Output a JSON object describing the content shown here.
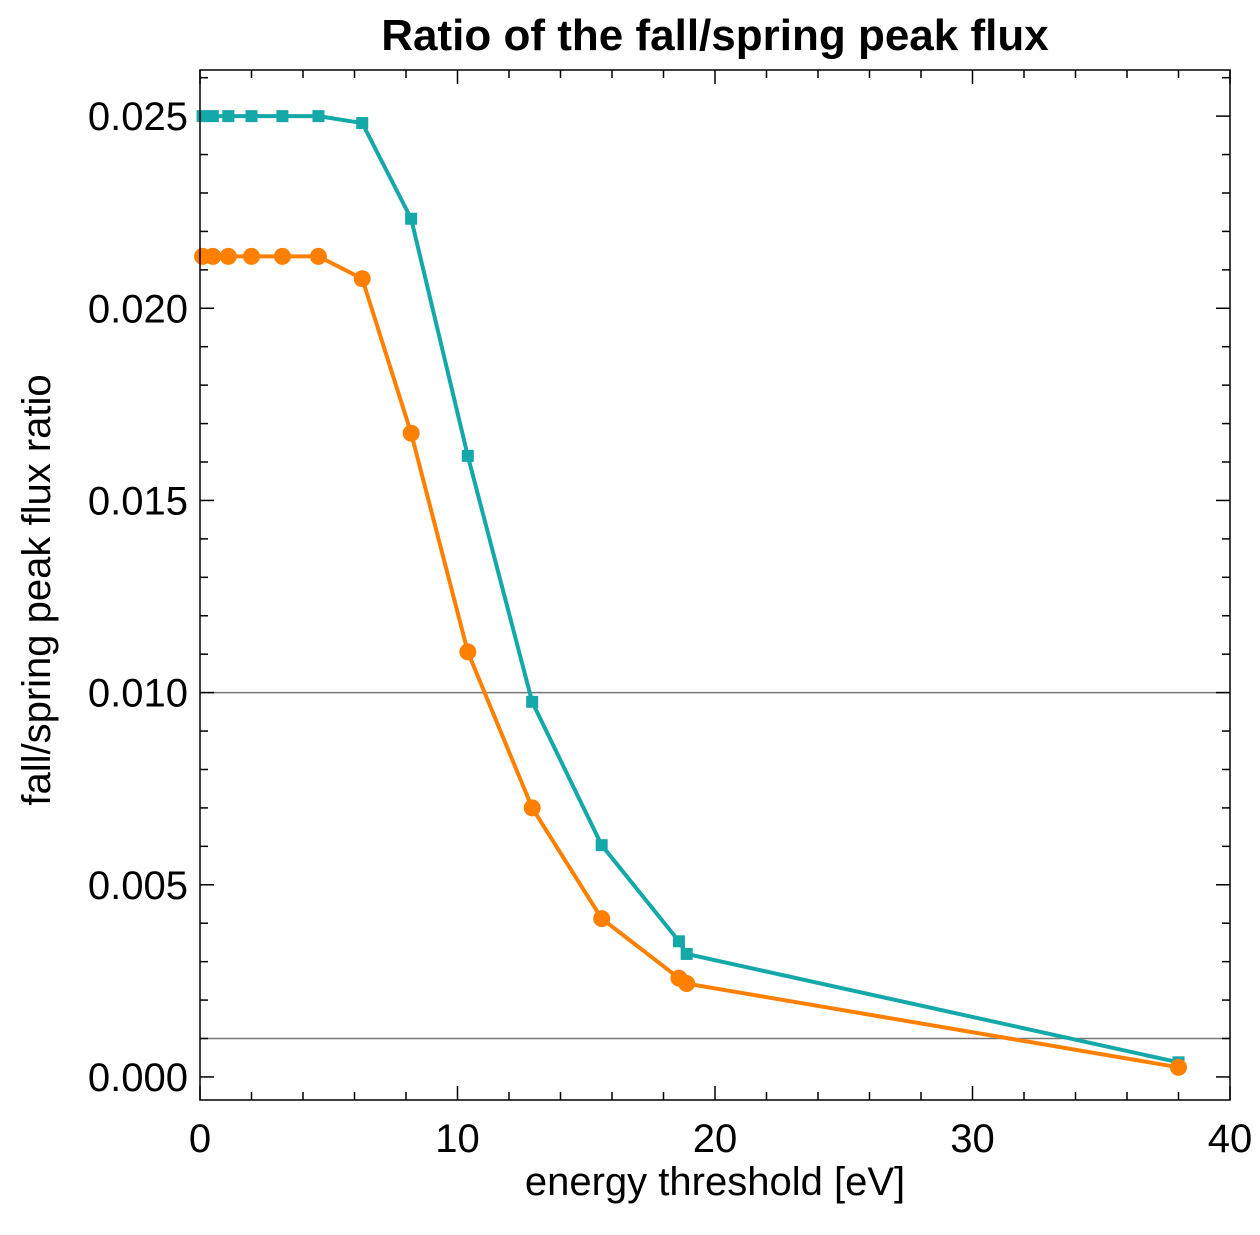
{
  "chart_data": {
    "type": "line",
    "title": "Ratio of the fall/spring peak flux",
    "xlabel": "energy threshold [eV]",
    "ylabel": "fall/spring peak flux ratio",
    "xlim": [
      0,
      40
    ],
    "ylim": [
      -0.0006,
      0.0262
    ],
    "x_ticks": [
      0,
      10,
      20,
      30,
      40
    ],
    "x_tick_labels": [
      "0",
      "10",
      "20",
      "30",
      "40"
    ],
    "y_ticks": [
      0.0,
      0.005,
      0.01,
      0.015,
      0.02,
      0.025
    ],
    "y_tick_labels": [
      "0.000",
      "0.005",
      "0.010",
      "0.015",
      "0.020",
      "0.025"
    ],
    "grid": false,
    "reference_lines_y": [
      0.01,
      0.001
    ],
    "colors": {
      "series_square": "#14a8a8",
      "series_circle": "#ff8000",
      "reference_line": "#777777",
      "frame": "#000000"
    },
    "series": [
      {
        "marker": "square",
        "color": "#14a8a8",
        "x": [
          0.1,
          0.5,
          1.1,
          2.0,
          3.2,
          4.6,
          6.3,
          8.2,
          10.4,
          12.9,
          15.6,
          18.6,
          18.9,
          38.0
        ],
        "y": [
          0.025,
          0.025,
          0.025,
          0.025,
          0.025,
          0.025,
          0.02482,
          0.02233,
          0.01616,
          0.00976,
          0.00603,
          0.00353,
          0.0032,
          0.00038
        ]
      },
      {
        "marker": "circle",
        "color": "#ff8000",
        "x": [
          0.1,
          0.5,
          1.1,
          2.0,
          3.2,
          4.6,
          6.3,
          8.2,
          10.4,
          12.9,
          15.6,
          18.6,
          18.9,
          38.0
        ],
        "y": [
          0.02135,
          0.02135,
          0.02135,
          0.02135,
          0.02135,
          0.02135,
          0.02077,
          0.01675,
          0.01106,
          0.007,
          0.00412,
          0.00257,
          0.00243,
          0.00025
        ]
      }
    ]
  }
}
